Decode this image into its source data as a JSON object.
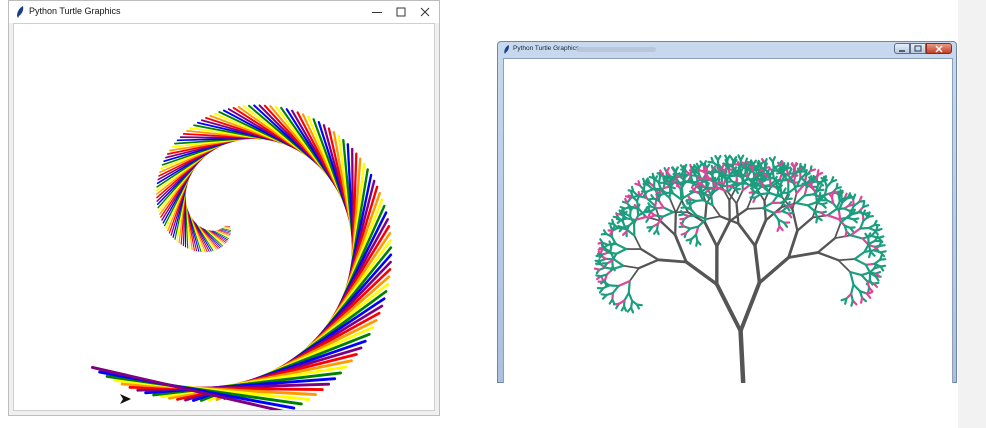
{
  "windows": [
    {
      "title": "Python Turtle Graphics",
      "app_icon": "feather-icon",
      "controls": [
        "minimize-icon",
        "maximize-icon",
        "close-icon"
      ],
      "drawing": "hexagon-spiral",
      "colors": [
        "#ff0000",
        "#ff9a00",
        "#ffff00",
        "#008000",
        "#0000ff",
        "#800080"
      ]
    },
    {
      "title": "Python Turtle Graphics",
      "app_icon": "feather-icon",
      "controls": [
        "minimize-icon",
        "maximize-icon",
        "close-icon"
      ],
      "drawing": "fractal-tree",
      "colors": {
        "branch": "#555555",
        "leaf": "#1a9e7e",
        "blossom": "#e0449a"
      }
    }
  ]
}
